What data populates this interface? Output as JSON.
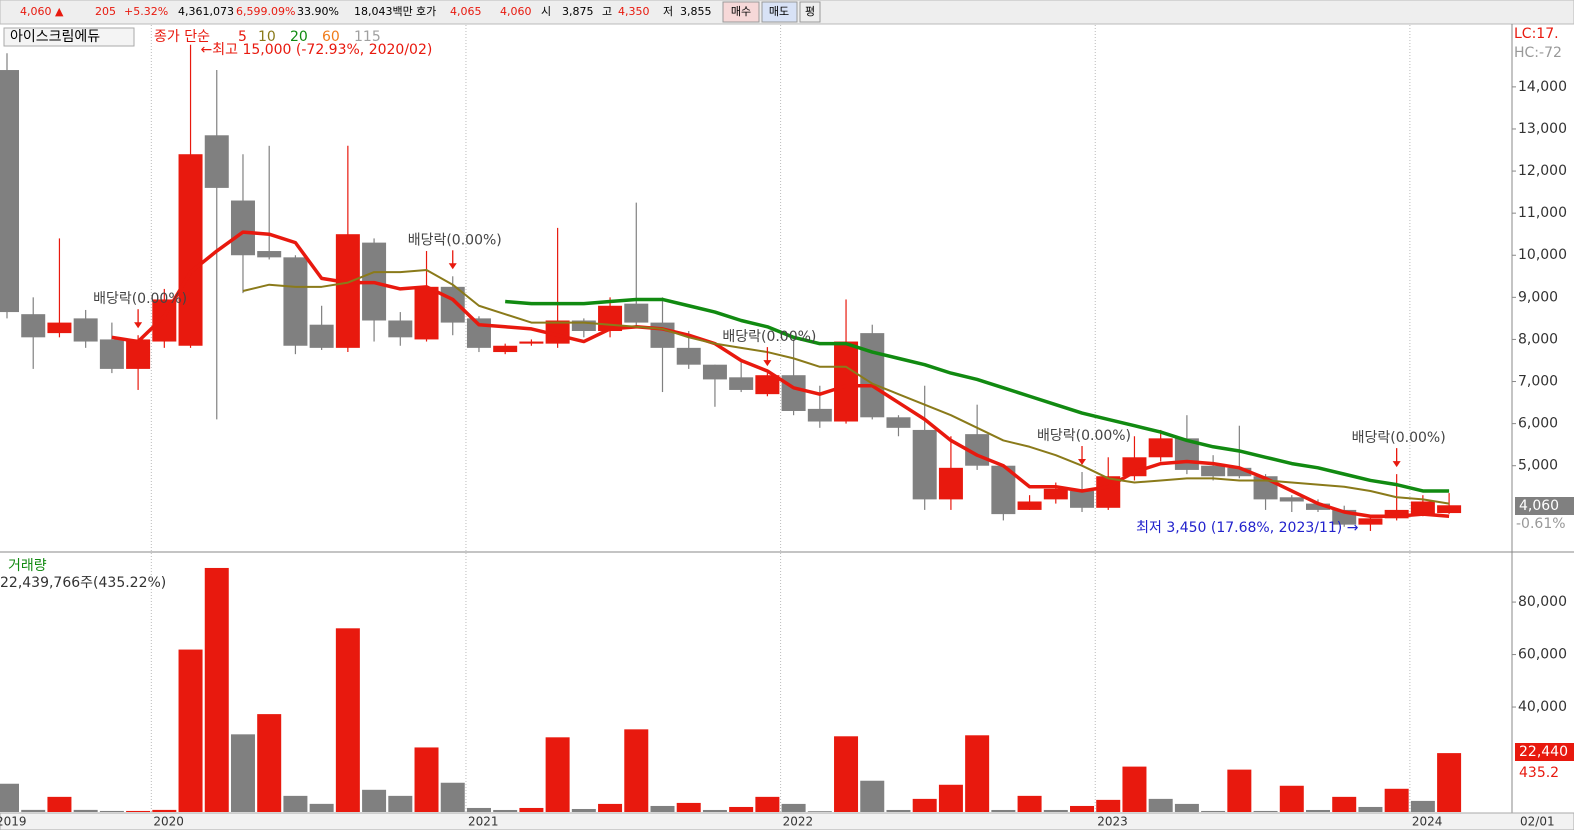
{
  "header": {
    "items": [
      {
        "text": "4,060 ▲"
      },
      {
        "text": "205"
      },
      {
        "text": "+5.32%"
      },
      {
        "text": "4,361,073"
      },
      {
        "text": "6,599.09%"
      },
      {
        "text": "33.90%"
      },
      {
        "text": "18,043백만"
      },
      {
        "text": "호가"
      },
      {
        "text": "4,065"
      },
      {
        "text": "4,060"
      },
      {
        "text": "시"
      },
      {
        "text": "3,875"
      },
      {
        "text": "고"
      },
      {
        "text": "4,350"
      },
      {
        "text": "저"
      },
      {
        "text": "3,855"
      }
    ],
    "buttons": [
      "매수",
      "매도",
      "평"
    ]
  },
  "chart_data": [
    {
      "type": "candlestick",
      "title": "아이스크림에듀",
      "ma_label": "종가 단순",
      "up_color": "#e8190e",
      "down_color": "#808080",
      "categories": [
        "2019",
        null,
        null,
        null,
        null,
        null,
        "2020",
        null,
        null,
        null,
        null,
        null,
        null,
        null,
        null,
        null,
        null,
        null,
        "2021",
        null,
        null,
        null,
        null,
        null,
        null,
        null,
        null,
        null,
        null,
        null,
        "2022",
        null,
        null,
        null,
        null,
        null,
        null,
        null,
        null,
        null,
        null,
        null,
        "2023",
        null,
        null,
        null,
        null,
        null,
        null,
        null,
        null,
        null,
        null,
        null,
        "2024",
        null
      ],
      "x_end_label": "02/01",
      "open": [
        14400,
        8600,
        8150,
        8500,
        8000,
        7300,
        7950,
        7850,
        12850,
        11300,
        10100,
        9950,
        8350,
        7800,
        10300,
        8450,
        8000,
        9250,
        8500,
        7700,
        7900,
        7900,
        8450,
        8200,
        8850,
        8400,
        7800,
        7400,
        7100,
        6700,
        7150,
        6350,
        6050,
        8150,
        6150,
        5850,
        4200,
        5750,
        5000,
        3950,
        4200,
        4400,
        4000,
        4750,
        5200,
        5650,
        5000,
        4950,
        4750,
        4250,
        4100,
        3950,
        3600,
        3750,
        3850,
        3875
      ],
      "high": [
        14800,
        9000,
        10400,
        8700,
        8400,
        8100,
        9200,
        15000,
        14400,
        12400,
        12600,
        10000,
        8800,
        12600,
        10400,
        8650,
        10100,
        9500,
        8550,
        7900,
        8000,
        10650,
        8500,
        9000,
        11250,
        9000,
        8200,
        7400,
        7500,
        7200,
        8000,
        6900,
        8950,
        8350,
        6200,
        6900,
        5700,
        6450,
        5000,
        4300,
        4600,
        4850,
        5200,
        5700,
        5850,
        6200,
        5250,
        5950,
        4800,
        4300,
        4200,
        4050,
        3800,
        4800,
        4300,
        4350
      ],
      "low": [
        8500,
        7300,
        8050,
        7800,
        7200,
        6800,
        7800,
        7800,
        6100,
        9100,
        9900,
        7650,
        7750,
        7700,
        7950,
        7850,
        7950,
        8100,
        7700,
        7650,
        7850,
        7800,
        8050,
        8050,
        8300,
        6750,
        7300,
        6400,
        6750,
        6650,
        6200,
        5900,
        6000,
        6100,
        5700,
        3950,
        3950,
        4900,
        3700,
        3950,
        4100,
        3900,
        3950,
        4650,
        5100,
        4800,
        4650,
        4700,
        3950,
        3900,
        3900,
        3550,
        3450,
        3700,
        3800,
        3855
      ],
      "close": [
        8650,
        8050,
        8400,
        7950,
        7300,
        8000,
        8950,
        12400,
        11600,
        10000,
        9950,
        7850,
        7800,
        10500,
        8450,
        8050,
        9250,
        8400,
        7800,
        7850,
        7950,
        8450,
        8200,
        8800,
        8400,
        7800,
        7400,
        7050,
        6800,
        7150,
        6300,
        6050,
        7950,
        6150,
        5900,
        4200,
        4950,
        5000,
        3850,
        4150,
        4450,
        4000,
        4750,
        5200,
        5650,
        4900,
        4750,
        4750,
        4200,
        4150,
        3950,
        3600,
        3750,
        3950,
        4150,
        4060
      ],
      "series": [
        {
          "name": "5",
          "color": "#e8190e",
          "values": [
            null,
            null,
            null,
            null,
            8050,
            7950,
            8550,
            9600,
            10100,
            10550,
            10500,
            10300,
            9450,
            9350,
            9350,
            9200,
            9250,
            8950,
            8350,
            8300,
            8250,
            8100,
            7950,
            8250,
            8300,
            8250,
            8100,
            7900,
            7500,
            7250,
            6850,
            6700,
            6900,
            6900,
            6500,
            6100,
            5600,
            5250,
            5000,
            4500,
            4500,
            4400,
            4500,
            4850,
            5050,
            5100,
            5050,
            4950,
            4700,
            4400,
            4100,
            3900,
            3800,
            3800,
            3850,
            3800
          ]
        },
        {
          "name": "10",
          "color": "#8a7a1a",
          "values": [
            null,
            null,
            null,
            null,
            null,
            null,
            null,
            null,
            null,
            9150,
            9300,
            9250,
            9250,
            9350,
            9600,
            9600,
            9650,
            9300,
            8800,
            8600,
            8400,
            8400,
            8400,
            8350,
            8300,
            8250,
            8050,
            7900,
            7800,
            7700,
            7550,
            7350,
            7350,
            6950,
            6700,
            6450,
            6200,
            5900,
            5600,
            5450,
            5250,
            5000,
            4700,
            4600,
            4650,
            4700,
            4700,
            4650,
            4650,
            4600,
            4550,
            4500,
            4400,
            4250,
            4200,
            4100
          ]
        },
        {
          "name": "20",
          "color": "#118a11",
          "values": [
            null,
            null,
            null,
            null,
            null,
            null,
            null,
            null,
            null,
            null,
            null,
            null,
            null,
            null,
            null,
            null,
            null,
            null,
            null,
            8900,
            8850,
            8850,
            8850,
            8900,
            8950,
            8950,
            8800,
            8650,
            8450,
            8300,
            8050,
            7900,
            7900,
            7700,
            7550,
            7400,
            7200,
            7050,
            6850,
            6650,
            6450,
            6250,
            6100,
            5950,
            5800,
            5600,
            5450,
            5350,
            5200,
            5050,
            4950,
            4800,
            4650,
            4550,
            4400,
            4400
          ]
        },
        {
          "name": "60",
          "color": "#f07c1a"
        },
        {
          "name": "115",
          "color": "#a0a0a0"
        }
      ],
      "dividend_labels": [
        null,
        null,
        null,
        null,
        null,
        "배당락(0.00%)",
        null,
        null,
        null,
        null,
        null,
        null,
        null,
        null,
        null,
        null,
        null,
        "배당락(0.00%)",
        null,
        null,
        null,
        null,
        null,
        null,
        null,
        null,
        null,
        null,
        null,
        "배당락(0.00%)",
        null,
        null,
        null,
        null,
        null,
        null,
        null,
        null,
        null,
        null,
        null,
        "배당락(0.00%)",
        null,
        null,
        null,
        null,
        null,
        null,
        null,
        null,
        null,
        null,
        null,
        "배당락(0.00%)",
        null,
        null
      ],
      "high_annotation": "←최고 15,000 (-72.93%, 2020/02)",
      "low_annotation": "최저 3,450 (17.68%, 2023/11) →",
      "lc_label": "LC:17.",
      "hc_label": "HC:-72",
      "last_label": "4,060",
      "change_label": "-0.61%",
      "ylim": [
        2950,
        15470
      ],
      "yticks": [
        {
          "value": 5000,
          "label": "5,000"
        },
        {
          "value": 6000,
          "label": "6,000"
        },
        {
          "value": 7000,
          "label": "7,000"
        },
        {
          "value": 8000,
          "label": "8,000"
        },
        {
          "value": 9000,
          "label": "9,000"
        },
        {
          "value": 10000,
          "label": "10,000"
        },
        {
          "value": 11000,
          "label": "11,000"
        },
        {
          "value": 12000,
          "label": "12,000"
        },
        {
          "value": 13000,
          "label": "13,000"
        },
        {
          "value": 14000,
          "label": "14,000"
        }
      ]
    },
    {
      "type": "bar",
      "title": "거래량",
      "subtitle": "22,439,766주(435.22%)",
      "up_color": "#e8190e",
      "down_color": "#808080",
      "values": [
        10770,
        800,
        5770,
        800,
        400,
        400,
        800,
        61900,
        93000,
        29600,
        37300,
        6150,
        3100,
        70000,
        8460,
        6150,
        24600,
        11150,
        1540,
        770,
        1540,
        28460,
        1150,
        3080,
        31500,
        2300,
        3460,
        770,
        1920,
        5770,
        3080,
        300,
        28850,
        11920,
        770,
        5000,
        10380,
        29230,
        770,
        6150,
        770,
        2300,
        4620,
        17300,
        5000,
        3080,
        400,
        16150,
        400,
        10000,
        770,
        5770,
        1920,
        8850,
        4230,
        22440
      ],
      "last_label": "22,440",
      "ratio_label": "435.2",
      "ylim": [
        0,
        98700
      ],
      "yticks": [
        {
          "value": 40000,
          "label": "40,000"
        },
        {
          "value": 60000,
          "label": "60,000"
        },
        {
          "value": 80000,
          "label": "80,000"
        }
      ]
    }
  ]
}
